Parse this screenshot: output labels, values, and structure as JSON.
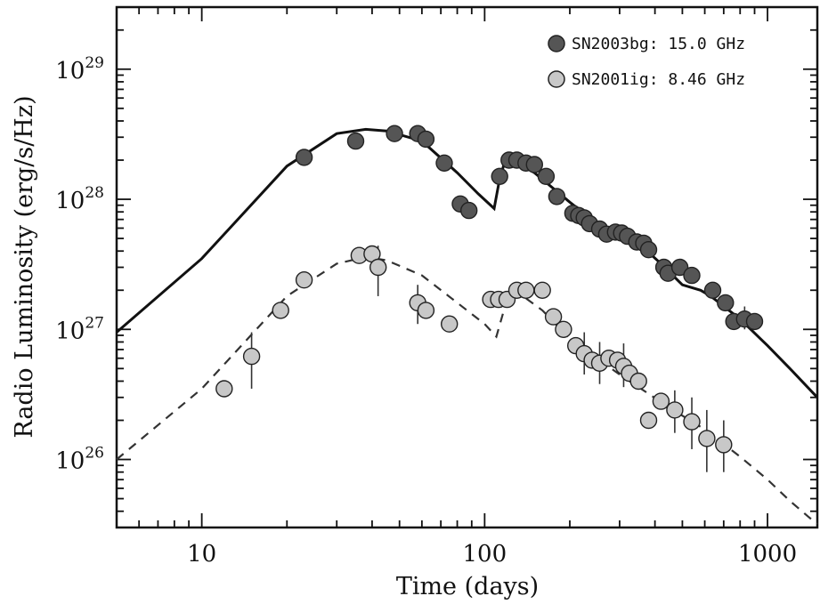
{
  "chart_data": {
    "type": "scatter",
    "title": "",
    "xlabel": "Time (days)",
    "ylabel": "Radio Luminosity (erg/s/Hz)",
    "xscale": "log",
    "yscale": "log",
    "xlim": [
      5,
      1500
    ],
    "ylim": [
      3e+25,
      3e+29
    ],
    "xticks": [
      {
        "value": 10,
        "label": "10"
      },
      {
        "value": 100,
        "label": "100"
      },
      {
        "value": 1000,
        "label": "1000"
      }
    ],
    "yticks": [
      {
        "value": 1e+26,
        "base": "10",
        "exp": "26"
      },
      {
        "value": 1e+27,
        "base": "10",
        "exp": "27"
      },
      {
        "value": 1e+28,
        "base": "10",
        "exp": "28"
      },
      {
        "value": 1e+29,
        "base": "10",
        "exp": "29"
      }
    ],
    "legend_position": "top-right",
    "series": [
      {
        "name": "SN2003bg: 15.0 GHz",
        "color": "#555555",
        "points": [
          [
            23,
            2.1e+28
          ],
          [
            35,
            2.8e+28
          ],
          [
            48,
            3.2e+28
          ],
          [
            58,
            3.2e+28
          ],
          [
            62,
            2.9e+28
          ],
          [
            72,
            1.9e+28
          ],
          [
            82,
            9.2e+27
          ],
          [
            88,
            8.2e+27
          ],
          [
            113,
            1.5e+28
          ],
          [
            122,
            2e+28
          ],
          [
            130,
            2e+28
          ],
          [
            140,
            1.9e+28
          ],
          [
            150,
            1.85e+28
          ],
          [
            165,
            1.5e+28
          ],
          [
            180,
            1.05e+28
          ],
          [
            205,
            7.8e+27
          ],
          [
            215,
            7.5e+27
          ],
          [
            225,
            7.2e+27
          ],
          [
            235,
            6.5e+27
          ],
          [
            255,
            5.9e+27
          ],
          [
            270,
            5.4e+27
          ],
          [
            290,
            5.6e+27
          ],
          [
            305,
            5.5e+27
          ],
          [
            320,
            5.2e+27
          ],
          [
            345,
            4.7e+27
          ],
          [
            365,
            4.6e+27
          ],
          [
            380,
            4.1e+27
          ],
          [
            430,
            3e+27
          ],
          [
            445,
            2.7e+27
          ],
          [
            490,
            3e+27
          ],
          [
            540,
            2.6e+27
          ],
          [
            640,
            2e+27
          ],
          [
            710,
            1.6e+27
          ],
          [
            760,
            1.15e+27
          ],
          [
            830,
            1.2e+27
          ],
          [
            900,
            1.15e+27
          ]
        ],
        "errors": [
          [
            830,
            1e+27,
            1.5e+27
          ]
        ]
      },
      {
        "name": "SN2001ig: 8.46 GHz",
        "color": "#c8c8c8",
        "points": [
          [
            12,
            3.5e+26
          ],
          [
            15,
            6.2e+26
          ],
          [
            19,
            1.4e+27
          ],
          [
            23,
            2.4e+27
          ],
          [
            36,
            3.7e+27
          ],
          [
            40,
            3.8e+27
          ],
          [
            42,
            3e+27
          ],
          [
            58,
            1.6e+27
          ],
          [
            62,
            1.4e+27
          ],
          [
            75,
            1.1e+27
          ],
          [
            105,
            1.7e+27
          ],
          [
            112,
            1.7e+27
          ],
          [
            120,
            1.7e+27
          ],
          [
            130,
            2e+27
          ],
          [
            140,
            2e+27
          ],
          [
            160,
            2e+27
          ],
          [
            175,
            1.25e+27
          ],
          [
            190,
            1e+27
          ],
          [
            210,
            7.5e+26
          ],
          [
            225,
            6.5e+26
          ],
          [
            240,
            5.8e+26
          ],
          [
            255,
            5.5e+26
          ],
          [
            275,
            6e+26
          ],
          [
            295,
            5.8e+26
          ],
          [
            310,
            5.2e+26
          ],
          [
            325,
            4.6e+26
          ],
          [
            350,
            4e+26
          ],
          [
            380,
            2e+26
          ],
          [
            420,
            2.8e+26
          ],
          [
            470,
            2.4e+26
          ],
          [
            540,
            1.95e+26
          ],
          [
            610,
            1.45e+26
          ],
          [
            700,
            1.3e+26
          ]
        ],
        "errors": [
          [
            15,
            3.5e+26,
            9.5e+26
          ],
          [
            42,
            1.8e+27,
            4.4e+27
          ],
          [
            58,
            1.1e+27,
            2.2e+27
          ],
          [
            225,
            4.5e+26,
            9.5e+26
          ],
          [
            255,
            3.8e+26,
            8e+26
          ],
          [
            310,
            3.6e+26,
            7.8e+26
          ],
          [
            470,
            1.6e+26,
            3.4e+26
          ],
          [
            540,
            1.2e+26,
            3e+26
          ],
          [
            610,
            8e+25,
            2.4e+26
          ],
          [
            700,
            8e+25,
            2e+26
          ]
        ]
      }
    ],
    "model_curves": [
      {
        "style": "solid",
        "color": "#111111",
        "points": [
          [
            5,
            9.5e+26
          ],
          [
            10,
            3.5e+27
          ],
          [
            20,
            1.8e+28
          ],
          [
            30,
            3.2e+28
          ],
          [
            38,
            3.45e+28
          ],
          [
            45,
            3.35e+28
          ],
          [
            60,
            2.8e+28
          ],
          [
            80,
            1.6e+28
          ],
          [
            95,
            1.1e+28
          ],
          [
            108,
            8.5e+27
          ],
          [
            112,
            1.3e+28
          ],
          [
            118,
            2e+28
          ],
          [
            125,
            2.05e+28
          ],
          [
            150,
            1.6e+28
          ],
          [
            200,
            9.5e+27
          ],
          [
            250,
            6.5e+27
          ],
          [
            280,
            5.6e+27
          ],
          [
            310,
            5.5e+27
          ],
          [
            350,
            4.6e+27
          ],
          [
            420,
            3.2e+27
          ],
          [
            500,
            2.2e+27
          ],
          [
            580,
            2e+27
          ],
          [
            630,
            1.8e+27
          ],
          [
            800,
            1.2e+27
          ],
          [
            1000,
            7.5e+26
          ],
          [
            1200,
            5e+26
          ],
          [
            1500,
            3e+26
          ]
        ]
      },
      {
        "style": "dashed",
        "color": "#333333",
        "points": [
          [
            5,
            1e+26
          ],
          [
            10,
            3.5e+26
          ],
          [
            20,
            1.8e+27
          ],
          [
            30,
            3.2e+27
          ],
          [
            38,
            3.6e+27
          ],
          [
            45,
            3.4e+27
          ],
          [
            60,
            2.6e+27
          ],
          [
            80,
            1.6e+27
          ],
          [
            100,
            1.1e+27
          ],
          [
            110,
            8.8e+26
          ],
          [
            118,
            1.5e+27
          ],
          [
            125,
            1.9e+27
          ],
          [
            130,
            1.95e+27
          ],
          [
            160,
            1.4e+27
          ],
          [
            200,
            8.5e+26
          ],
          [
            300,
            4.5e+26
          ],
          [
            450,
            2.5e+26
          ],
          [
            600,
            1.7e+26
          ],
          [
            800,
            1.05e+26
          ],
          [
            1000,
            7e+25
          ],
          [
            1200,
            4.8e+25
          ],
          [
            1400,
            3.6e+25
          ],
          [
            1500,
            3.2e+25
          ]
        ]
      }
    ]
  }
}
